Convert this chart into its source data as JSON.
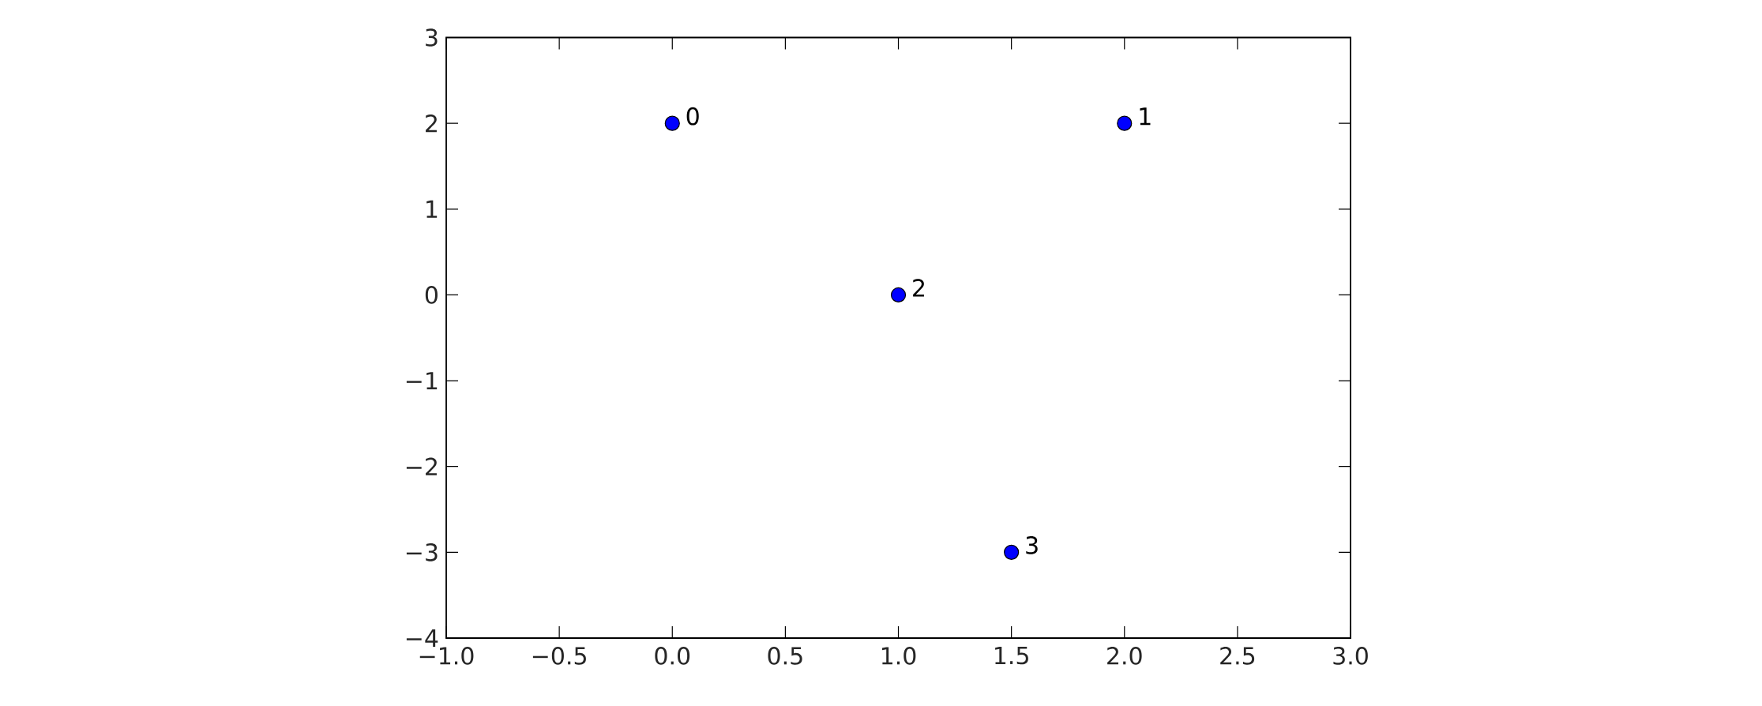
{
  "chart_data": {
    "type": "scatter",
    "x": [
      0,
      2,
      1,
      1.5
    ],
    "values": [
      2,
      2,
      0,
      -3
    ],
    "color": "#0000ff",
    "xlim": [
      -1,
      3
    ],
    "ylim": [
      -4,
      3
    ],
    "xticks": [
      {
        "value": -1,
        "label": "−1.0"
      },
      {
        "value": -0.5,
        "label": "−0.5"
      },
      {
        "value": 0,
        "label": "0.0"
      },
      {
        "value": 0.5,
        "label": "0.5"
      },
      {
        "value": 1,
        "label": "1.0"
      },
      {
        "value": 1.5,
        "label": "1.5"
      },
      {
        "value": 2,
        "label": "2.0"
      },
      {
        "value": 2.5,
        "label": "2.5"
      },
      {
        "value": 3,
        "label": "3.0"
      }
    ],
    "yticks": [
      {
        "value": -4,
        "label": "−4"
      },
      {
        "value": -3,
        "label": "−3"
      },
      {
        "value": -2,
        "label": "−2"
      },
      {
        "value": -1,
        "label": "−1"
      },
      0,
      1,
      2,
      3
    ],
    "annotations": [
      {
        "text": "0",
        "x": 0,
        "y": 2
      },
      {
        "text": "1",
        "x": 2,
        "y": 2
      },
      {
        "text": "2",
        "x": 1,
        "y": 0
      },
      {
        "text": "3",
        "x": 1.5,
        "y": -3
      }
    ]
  }
}
